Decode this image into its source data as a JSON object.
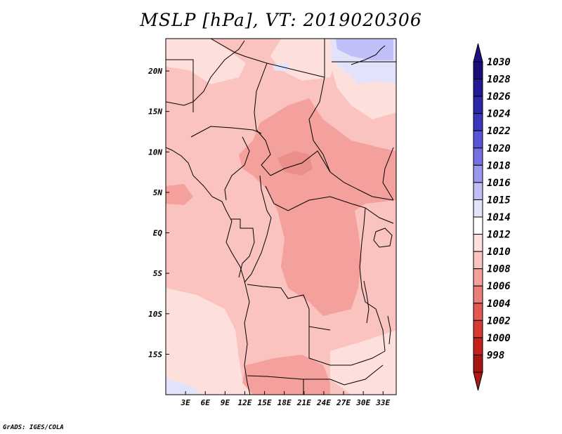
{
  "title": "MSLP [hPa], VT: 2019020306",
  "credit": "GrADS: IGES/COLA",
  "map": {
    "region": "Central Africa",
    "lon_range": [
      0,
      35
    ],
    "lat_range": [
      -20,
      24
    ],
    "lon_ticks": [
      {
        "value": 3,
        "label": "3E"
      },
      {
        "value": 6,
        "label": "6E"
      },
      {
        "value": 9,
        "label": "9E"
      },
      {
        "value": 12,
        "label": "12E"
      },
      {
        "value": 15,
        "label": "15E"
      },
      {
        "value": 18,
        "label": "18E"
      },
      {
        "value": 21,
        "label": "21E"
      },
      {
        "value": 24,
        "label": "24E"
      },
      {
        "value": 27,
        "label": "27E"
      },
      {
        "value": 30,
        "label": "30E"
      },
      {
        "value": 33,
        "label": "33E"
      }
    ],
    "lat_ticks": [
      {
        "value": 20,
        "label": "20N"
      },
      {
        "value": 15,
        "label": "15N"
      },
      {
        "value": 10,
        "label": "10N"
      },
      {
        "value": 5,
        "label": "5N"
      },
      {
        "value": 0,
        "label": "EQ"
      },
      {
        "value": -5,
        "label": "5S"
      },
      {
        "value": -10,
        "label": "10S"
      },
      {
        "value": -15,
        "label": "15S"
      }
    ]
  },
  "colorbar": {
    "levels": [
      {
        "label": "1030",
        "color": "#1a0e7a"
      },
      {
        "label": "1028",
        "color": "#231a94"
      },
      {
        "label": "1026",
        "color": "#2c27a8"
      },
      {
        "label": "1024",
        "color": "#3b36be"
      },
      {
        "label": "1022",
        "color": "#5a55d6"
      },
      {
        "label": "1020",
        "color": "#7670e4"
      },
      {
        "label": "1018",
        "color": "#9b97ef"
      },
      {
        "label": "1016",
        "color": "#c1bff7"
      },
      {
        "label": "1015",
        "color": "#e2e2fb"
      },
      {
        "label": "1014",
        "color": "#ffffff"
      },
      {
        "label": "1012",
        "color": "#fde0dc"
      },
      {
        "label": "1010",
        "color": "#fbc3c0"
      },
      {
        "label": "1008",
        "color": "#f4a09c"
      },
      {
        "label": "1006",
        "color": "#ea7f7a"
      },
      {
        "label": "1004",
        "color": "#e05a52"
      },
      {
        "label": "1002",
        "color": "#d63a33"
      },
      {
        "label": "1000",
        "color": "#c4221d"
      },
      {
        "label": "998",
        "color": "#a81612"
      }
    ],
    "top_arrow_color": "#1f0d82",
    "bottom_arrow_color": "#ab1a13"
  },
  "fields": {
    "base_color": "#fbc3c0",
    "low_color": "#f4a09c",
    "lower_color": "#ea8e89",
    "high_color": "#fde0dc",
    "higher_color": "#e2e2fb",
    "highest_color": "#c1bff7"
  }
}
